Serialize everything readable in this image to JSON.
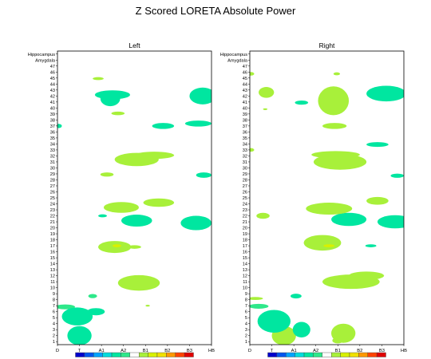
{
  "chart_data": {
    "type": "heatmap",
    "title": "Z Scored LORETA Absolute Power",
    "x_ticks": [
      "D",
      "T",
      "A1",
      "A2",
      "B1",
      "B2",
      "B3",
      "HB"
    ],
    "y_ticks": [
      "1",
      "2",
      "3",
      "4",
      "5",
      "6",
      "7",
      "8",
      "9",
      "10",
      "11",
      "12",
      "13",
      "14",
      "15",
      "16",
      "17",
      "18",
      "19",
      "20",
      "21",
      "22",
      "23",
      "24",
      "25",
      "26",
      "27",
      "28",
      "29",
      "30",
      "31",
      "32",
      "33",
      "34",
      "35",
      "36",
      "37",
      "38",
      "39",
      "40",
      "41",
      "42",
      "43",
      "44",
      "45",
      "46",
      "47",
      "Amygdala",
      "Hippocampus"
    ],
    "color_scale": [
      "#0000cc",
      "#0055ee",
      "#00a3ff",
      "#00dcdc",
      "#00e6a0",
      "#2ee88a",
      "#ffffff",
      "#a8f03a",
      "#d8f000",
      "#f0e000",
      "#ff9900",
      "#ff4400",
      "#e00000"
    ],
    "panels": [
      {
        "name": "Left",
        "regions": [
          {
            "x": 1.0,
            "y": 2.0,
            "rx": 0.55,
            "ry": 1.6,
            "color": "#00e6a0"
          },
          {
            "x": 0.35,
            "y": 6.8,
            "rx": 0.45,
            "ry": 0.4,
            "color": "#2ee88a"
          },
          {
            "x": 0.9,
            "y": 5.2,
            "rx": 0.7,
            "ry": 1.5,
            "color": "#00e6a0"
          },
          {
            "x": 1.6,
            "y": 8.6,
            "rx": 0.2,
            "ry": 0.35,
            "color": "#2ee88a"
          },
          {
            "x": 1.75,
            "y": 6.0,
            "rx": 0.4,
            "ry": 0.6,
            "color": "#00e6a0"
          },
          {
            "x": 3.7,
            "y": 10.8,
            "rx": 0.95,
            "ry": 1.3,
            "color": "#a8f03a"
          },
          {
            "x": 4.1,
            "y": 7.0,
            "rx": 0.1,
            "ry": 0.15,
            "color": "#a8f03a"
          },
          {
            "x": 2.6,
            "y": 16.8,
            "rx": 0.75,
            "ry": 1.0,
            "color": "#a8f03a"
          },
          {
            "x": 2.7,
            "y": 17.0,
            "rx": 0.2,
            "ry": 0.25,
            "color": "#d8f000"
          },
          {
            "x": 3.5,
            "y": 16.8,
            "rx": 0.3,
            "ry": 0.3,
            "color": "#a8f03a"
          },
          {
            "x": 3.6,
            "y": 21.2,
            "rx": 0.7,
            "ry": 1.0,
            "color": "#00e6a0"
          },
          {
            "x": 6.3,
            "y": 20.8,
            "rx": 0.7,
            "ry": 1.2,
            "color": "#00e6a0"
          },
          {
            "x": 2.05,
            "y": 22.0,
            "rx": 0.2,
            "ry": 0.25,
            "color": "#00e6a0"
          },
          {
            "x": 2.9,
            "y": 23.4,
            "rx": 0.8,
            "ry": 0.9,
            "color": "#a8f03a"
          },
          {
            "x": 4.6,
            "y": 24.2,
            "rx": 0.7,
            "ry": 0.7,
            "color": "#a8f03a"
          },
          {
            "x": 2.25,
            "y": 28.9,
            "rx": 0.3,
            "ry": 0.35,
            "color": "#a8f03a"
          },
          {
            "x": 6.65,
            "y": 28.8,
            "rx": 0.35,
            "ry": 0.45,
            "color": "#00e6a0"
          },
          {
            "x": 3.6,
            "y": 31.4,
            "rx": 1.0,
            "ry": 1.1,
            "color": "#a8f03a"
          },
          {
            "x": 4.4,
            "y": 32.1,
            "rx": 0.9,
            "ry": 0.6,
            "color": "#a8f03a"
          },
          {
            "x": 4.8,
            "y": 37.0,
            "rx": 0.5,
            "ry": 0.5,
            "color": "#00e6a0"
          },
          {
            "x": 6.4,
            "y": 37.4,
            "rx": 0.6,
            "ry": 0.5,
            "color": "#00e6a0"
          },
          {
            "x": 0.05,
            "y": 37.0,
            "rx": 0.15,
            "ry": 0.35,
            "color": "#00e6a0"
          },
          {
            "x": 2.75,
            "y": 39.1,
            "rx": 0.3,
            "ry": 0.3,
            "color": "#a8f03a"
          },
          {
            "x": 2.4,
            "y": 41.6,
            "rx": 0.45,
            "ry": 1.3,
            "color": "#00e6a0"
          },
          {
            "x": 2.5,
            "y": 42.2,
            "rx": 0.8,
            "ry": 0.75,
            "color": "#00e6a0"
          },
          {
            "x": 6.6,
            "y": 42.0,
            "rx": 0.6,
            "ry": 1.4,
            "color": "#00e6a0"
          },
          {
            "x": 1.85,
            "y": 44.9,
            "rx": 0.25,
            "ry": 0.25,
            "color": "#a8f03a"
          }
        ]
      },
      {
        "name": "Right",
        "regions": [
          {
            "x": 1.55,
            "y": 2.0,
            "rx": 0.55,
            "ry": 1.6,
            "color": "#a8f03a"
          },
          {
            "x": 1.1,
            "y": 4.4,
            "rx": 0.75,
            "ry": 1.9,
            "color": "#00e6a0"
          },
          {
            "x": 0.4,
            "y": 6.9,
            "rx": 0.45,
            "ry": 0.4,
            "color": "#2ee88a"
          },
          {
            "x": 2.35,
            "y": 3.0,
            "rx": 0.4,
            "ry": 1.3,
            "color": "#00e6a0"
          },
          {
            "x": 4.25,
            "y": 2.4,
            "rx": 0.55,
            "ry": 1.6,
            "color": "#a8f03a"
          },
          {
            "x": 4.0,
            "y": 1.2,
            "rx": 0.25,
            "ry": 0.5,
            "color": "#a8f03a"
          },
          {
            "x": 0.25,
            "y": 8.2,
            "rx": 0.35,
            "ry": 0.25,
            "color": "#a8f03a"
          },
          {
            "x": 2.1,
            "y": 8.6,
            "rx": 0.25,
            "ry": 0.4,
            "color": "#00e6a0"
          },
          {
            "x": 4.6,
            "y": 11.0,
            "rx": 1.3,
            "ry": 1.2,
            "color": "#a8f03a"
          },
          {
            "x": 5.3,
            "y": 12.0,
            "rx": 0.8,
            "ry": 0.7,
            "color": "#a8f03a"
          },
          {
            "x": 3.3,
            "y": 17.5,
            "rx": 0.85,
            "ry": 1.3,
            "color": "#a8f03a"
          },
          {
            "x": 3.6,
            "y": 17.0,
            "rx": 0.25,
            "ry": 0.25,
            "color": "#d8f000"
          },
          {
            "x": 5.5,
            "y": 17.0,
            "rx": 0.25,
            "ry": 0.25,
            "color": "#00e6a0"
          },
          {
            "x": 0.6,
            "y": 22.0,
            "rx": 0.3,
            "ry": 0.5,
            "color": "#a8f03a"
          },
          {
            "x": 4.5,
            "y": 21.4,
            "rx": 0.8,
            "ry": 1.1,
            "color": "#00e6a0"
          },
          {
            "x": 6.6,
            "y": 21.0,
            "rx": 0.8,
            "ry": 1.1,
            "color": "#00e6a0"
          },
          {
            "x": 3.6,
            "y": 23.2,
            "rx": 1.05,
            "ry": 1.0,
            "color": "#a8f03a"
          },
          {
            "x": 5.8,
            "y": 24.5,
            "rx": 0.5,
            "ry": 0.65,
            "color": "#a8f03a"
          },
          {
            "x": 6.7,
            "y": 28.7,
            "rx": 0.3,
            "ry": 0.35,
            "color": "#00e6a0"
          },
          {
            "x": 4.1,
            "y": 31.0,
            "rx": 1.2,
            "ry": 1.3,
            "color": "#a8f03a"
          },
          {
            "x": 3.9,
            "y": 32.2,
            "rx": 1.1,
            "ry": 0.6,
            "color": "#a8f03a"
          },
          {
            "x": 0.05,
            "y": 33.0,
            "rx": 0.15,
            "ry": 0.3,
            "color": "#a8f03a"
          },
          {
            "x": 5.8,
            "y": 33.9,
            "rx": 0.5,
            "ry": 0.4,
            "color": "#00e6a0"
          },
          {
            "x": 3.85,
            "y": 37.0,
            "rx": 0.55,
            "ry": 0.5,
            "color": "#a8f03a"
          },
          {
            "x": 0.75,
            "y": 42.6,
            "rx": 0.35,
            "ry": 0.9,
            "color": "#a8f03a"
          },
          {
            "x": 2.35,
            "y": 40.9,
            "rx": 0.3,
            "ry": 0.35,
            "color": "#00e6a0"
          },
          {
            "x": 3.8,
            "y": 41.2,
            "rx": 0.7,
            "ry": 2.4,
            "color": "#a8f03a"
          },
          {
            "x": 6.2,
            "y": 42.4,
            "rx": 0.9,
            "ry": 1.3,
            "color": "#00e6a0"
          },
          {
            "x": 0.7,
            "y": 39.8,
            "rx": 0.1,
            "ry": 0.15,
            "color": "#a8f03a"
          },
          {
            "x": 3.95,
            "y": 45.7,
            "rx": 0.15,
            "ry": 0.25,
            "color": "#a8f03a"
          },
          {
            "x": 0.05,
            "y": 45.7,
            "rx": 0.15,
            "ry": 0.3,
            "color": "#a8f03a"
          }
        ]
      }
    ]
  }
}
